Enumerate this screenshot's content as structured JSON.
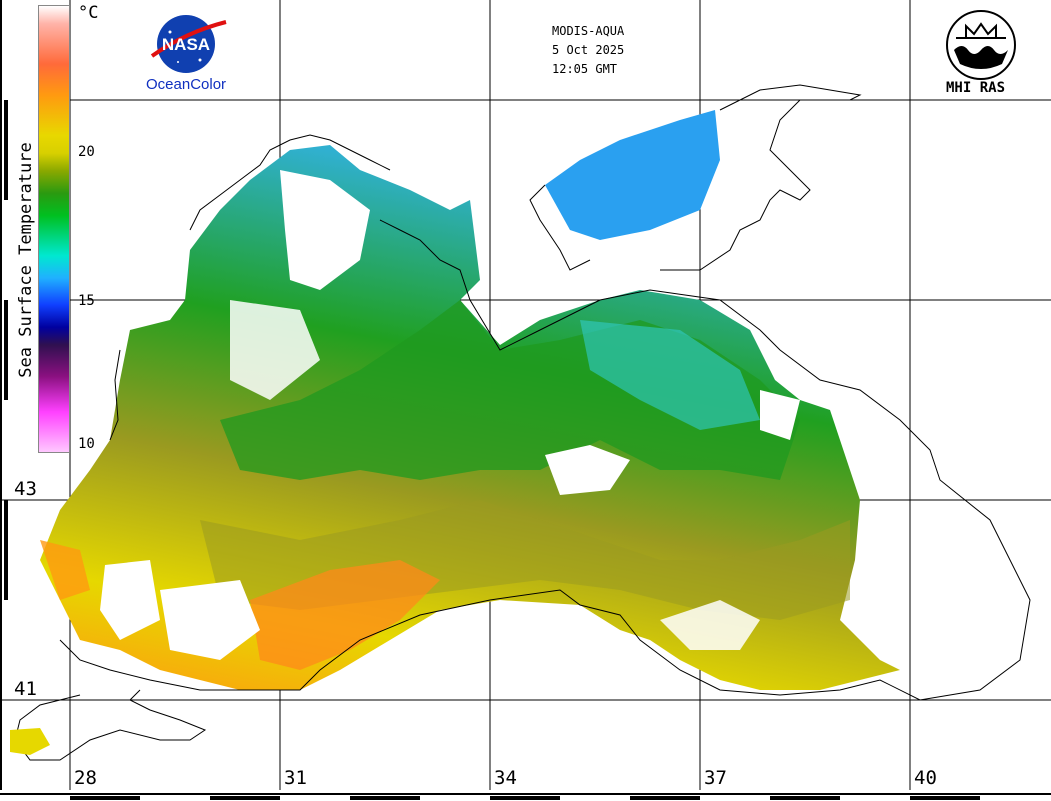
{
  "header": {
    "sensor": "MODIS-AQUA",
    "date": "5 Oct 2025",
    "time": "12:05 GMT"
  },
  "logos": {
    "nasa_text": "NASA",
    "oceancolor": "OceanColor",
    "mhi": "MHI RAS"
  },
  "legend": {
    "title": "Sea Surface Temperature",
    "unit": "°C",
    "ticks": [
      "20",
      "15",
      "10"
    ]
  },
  "axes": {
    "lat_labels": [
      "43",
      "41"
    ],
    "lon_labels": [
      "28",
      "31",
      "34",
      "37",
      "40"
    ]
  },
  "colors": {
    "warm": "#ff8c1a",
    "mid_warm": "#e6e600",
    "olive": "#8f8f1a",
    "green": "#1ea01e",
    "cyan": "#40e0d0",
    "blue": "#3090ff",
    "cloud": "#ffffff",
    "coast": "#000000"
  }
}
